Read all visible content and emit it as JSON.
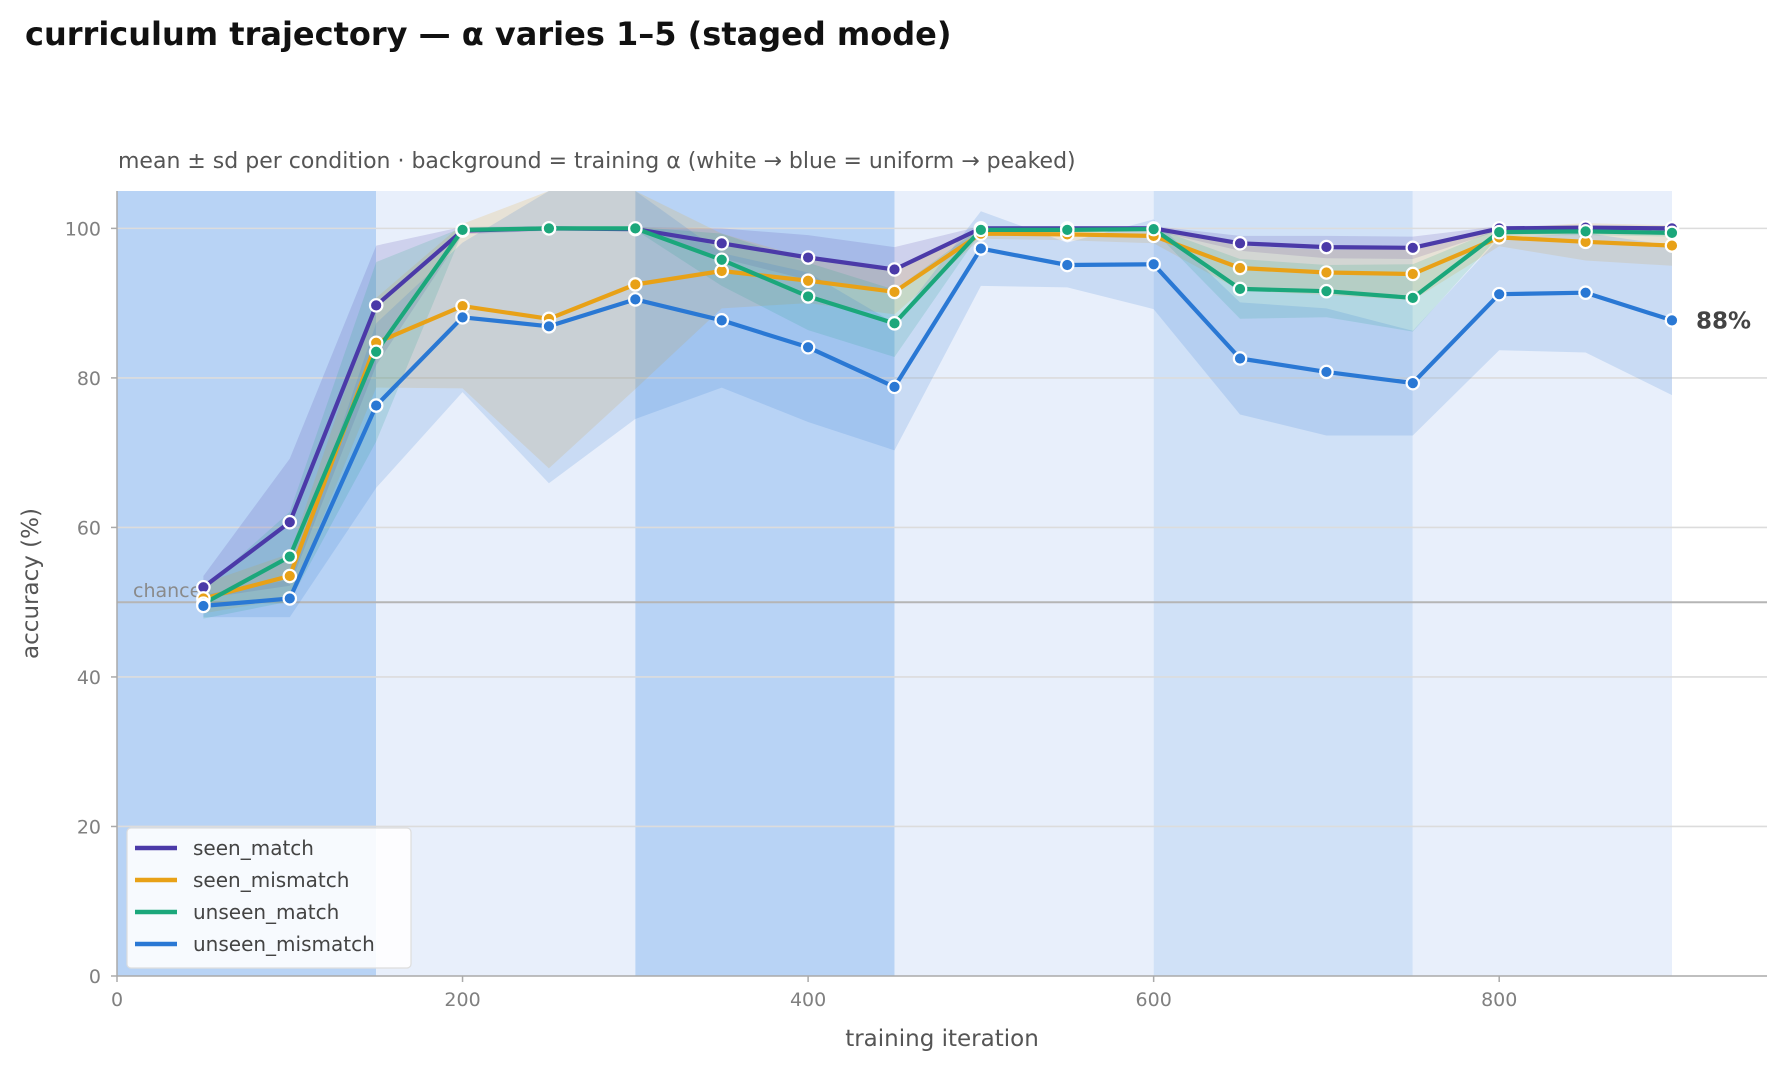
{
  "chart_data": {
    "type": "line",
    "title": "curriculum trajectory — α varies 1–5 (staged mode)",
    "subtitle": "mean ± sd per condition · background = training α (white → blue = uniform → peaked)",
    "xlabel": "training iteration",
    "ylabel": "accuracy (%)",
    "xlim": [
      0,
      955
    ],
    "ylim": [
      0,
      105
    ],
    "xticks": [
      0,
      200,
      400,
      600,
      800
    ],
    "yticks": [
      0,
      20,
      40,
      60,
      80,
      100
    ],
    "grid": "horizontal",
    "legend_position": "bottom-left",
    "chance_level": 50,
    "chance_label": "chance",
    "end_label": "88%",
    "end_label_value": 87.7,
    "alpha_bands": [
      {
        "x0": 0,
        "x1": 150,
        "shade": "#b8d3f5"
      },
      {
        "x0": 150,
        "x1": 300,
        "shade": "#e8effb"
      },
      {
        "x0": 300,
        "x1": 450,
        "shade": "#b8d3f5"
      },
      {
        "x0": 450,
        "x1": 600,
        "shade": "#e8effb"
      },
      {
        "x0": 600,
        "x1": 750,
        "shade": "#d0e1f7"
      },
      {
        "x0": 750,
        "x1": 900,
        "shade": "#e8effb"
      }
    ],
    "x": [
      50,
      100,
      150,
      200,
      250,
      300,
      350,
      400,
      450,
      500,
      550,
      600,
      650,
      700,
      750,
      800,
      850,
      900
    ],
    "series": [
      {
        "name": "seen_match",
        "color": "#4b3aa8",
        "values": [
          52,
          60.7,
          89.7,
          99.7,
          100,
          99.9,
          98,
          96.1,
          94.5,
          100,
          100,
          100,
          98,
          97.5,
          97.4,
          100,
          100.1,
          100
        ],
        "sd": [
          1.5,
          8.5,
          8,
          0.5,
          0.3,
          0.3,
          2,
          3,
          3,
          0.3,
          0.3,
          0.3,
          1,
          1.5,
          1.5,
          0.3,
          0.3,
          0.3
        ]
      },
      {
        "name": "seen_mismatch",
        "color": "#e8a117",
        "values": [
          50.5,
          53.5,
          84.7,
          89.6,
          87.9,
          92.5,
          94.3,
          93,
          91.5,
          99.3,
          99.2,
          99,
          94.7,
          94.1,
          93.9,
          98.8,
          98.2,
          97.7
        ],
        "sd": [
          2,
          3,
          6,
          11,
          20,
          14,
          5,
          3,
          3,
          0.7,
          0.8,
          1,
          3,
          3,
          3.5,
          1.2,
          2.5,
          2.7
        ]
      },
      {
        "name": "unseen_match",
        "color": "#1ba77b",
        "values": [
          49.8,
          56.1,
          83.5,
          99.8,
          100,
          100,
          95.8,
          90.9,
          87.3,
          99.8,
          99.8,
          99.9,
          91.9,
          91.6,
          90.7,
          99.5,
          99.6,
          99.4
        ],
        "sd": [
          2,
          6,
          12,
          0.3,
          0.2,
          0.2,
          3.5,
          4.5,
          4.5,
          0.3,
          0.3,
          0.2,
          4,
          3.5,
          4.5,
          0.5,
          0.5,
          0.5
        ]
      },
      {
        "name": "unseen_mismatch",
        "color": "#2a78d4",
        "values": [
          49.5,
          50.5,
          76.3,
          88.1,
          86.9,
          90.5,
          87.7,
          84.1,
          78.8,
          97.3,
          95.1,
          95.2,
          82.6,
          80.8,
          79.3,
          91.2,
          91.4,
          87.7
        ],
        "sd": [
          1.5,
          2.5,
          11,
          10,
          21,
          16,
          9,
          10,
          8.5,
          5,
          3,
          6,
          7.5,
          8.5,
          7,
          7.5,
          8,
          10
        ]
      }
    ]
  }
}
